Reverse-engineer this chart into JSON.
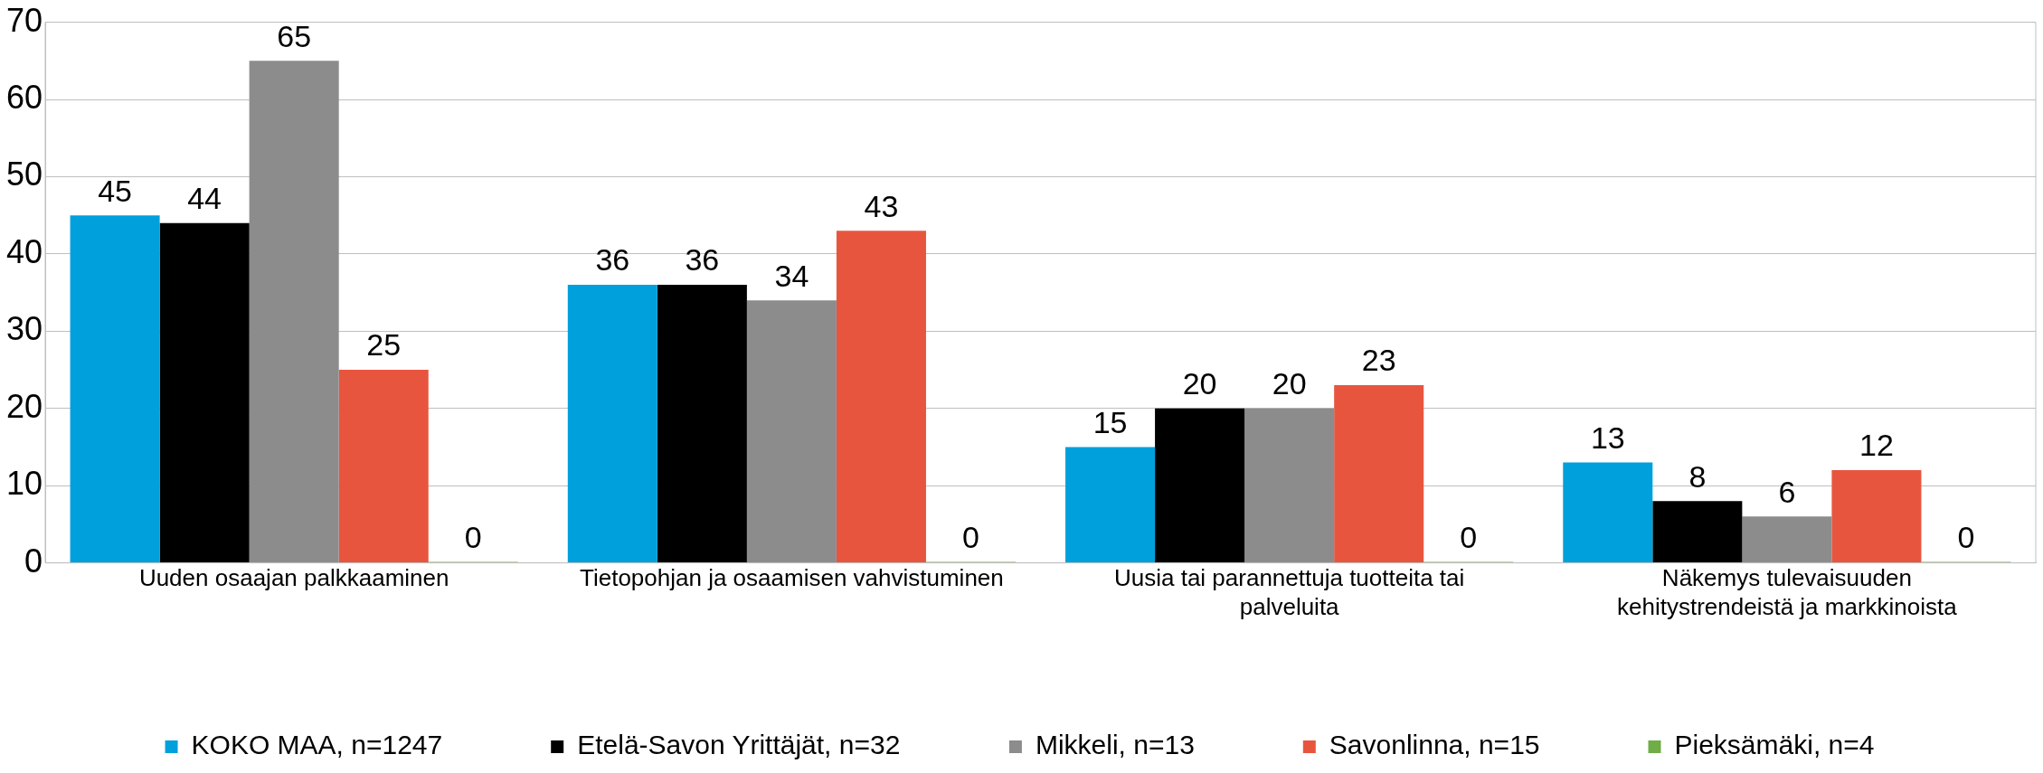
{
  "chart_data": {
    "type": "bar",
    "categories": [
      "Uuden osaajan palkkaaminen",
      "Tietopohjan ja osaamisen vahvistuminen",
      "Uusia tai parannettuja tuotteita tai palveluita",
      "Näkemys tulevaisuuden kehitystrendeistä ja markkinoista"
    ],
    "series": [
      {
        "name": "KOKO MAA, n=1247",
        "color": "#00a0dc",
        "values": [
          45,
          36,
          15,
          13
        ]
      },
      {
        "name": "Etelä-Savon Yrittäjät, n=32",
        "color": "#000000",
        "values": [
          44,
          36,
          20,
          8
        ]
      },
      {
        "name": "Mikkeli, n=13",
        "color": "#8c8c8c",
        "values": [
          65,
          34,
          20,
          6
        ]
      },
      {
        "name": "Savonlinna, n=15",
        "color": "#e8553e",
        "values": [
          25,
          43,
          23,
          12
        ]
      },
      {
        "name": "Pieksämäki, n=4",
        "color": "#70ad47",
        "values": [
          0,
          0,
          0,
          0
        ]
      }
    ],
    "ylim": [
      0,
      70
    ],
    "yticks": [
      0,
      10,
      20,
      30,
      40,
      50,
      60,
      70
    ],
    "grid": "y",
    "legend": "bottom",
    "data_labels": true
  }
}
